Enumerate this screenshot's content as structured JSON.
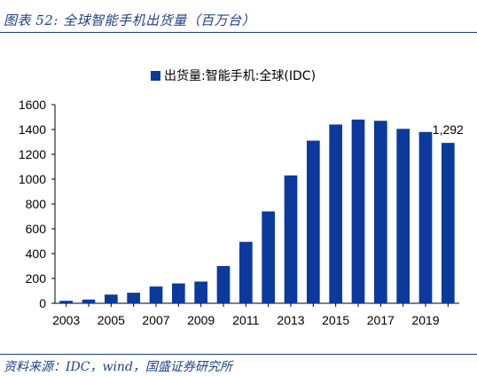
{
  "figure": {
    "title": "图表 52: 全球智能手机出货量（百万台）",
    "source": "资料来源：IDC，wind，国盛证券研究所"
  },
  "chart_data": {
    "type": "bar",
    "legend": {
      "label": "出货量:智能手机:全球(IDC)",
      "placement": "top-center",
      "color": "#0b3a9c"
    },
    "bar_color": "#0b3a9c",
    "categories": [
      "2003",
      "2004",
      "2005",
      "2006",
      "2007",
      "2008",
      "2009",
      "2010",
      "2011",
      "2012",
      "2013",
      "2014",
      "2015",
      "2016",
      "2017",
      "2018",
      "2019",
      "2020"
    ],
    "values": [
      20,
      30,
      70,
      85,
      135,
      160,
      175,
      300,
      495,
      740,
      1030,
      1310,
      1440,
      1480,
      1470,
      1405,
      1380,
      1292
    ],
    "x_tick_labels": [
      "2003",
      "2005",
      "2007",
      "2009",
      "2011",
      "2013",
      "2015",
      "2017",
      "2019"
    ],
    "y_ticks": [
      0,
      200,
      400,
      600,
      800,
      1000,
      1200,
      1400,
      1600
    ],
    "ylim": [
      0,
      1600
    ],
    "data_labels": [
      {
        "category": "2020",
        "text": "1,292"
      }
    ],
    "grid": false
  }
}
